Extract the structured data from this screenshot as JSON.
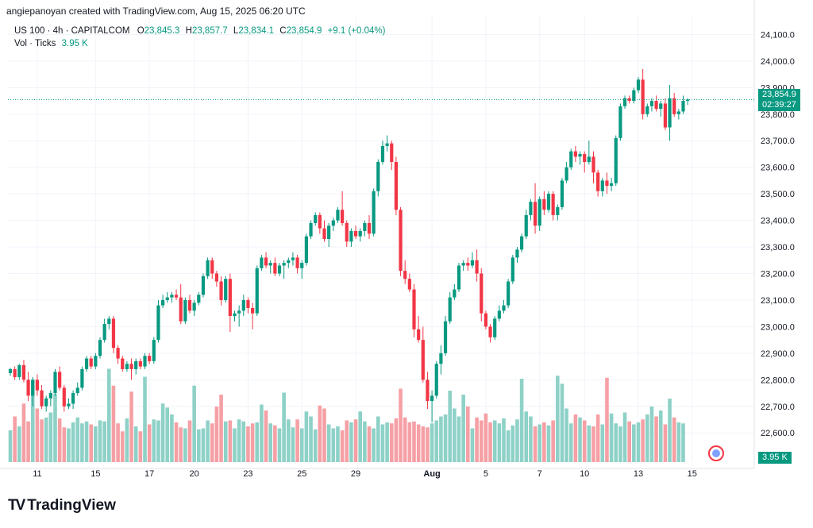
{
  "header": {
    "credit": "angiepanoyan created with TradingView.com, Aug 15, 2025 06:20 UTC",
    "symbol": "US 100 · 4h · CAPITALCOM",
    "o_label": "O",
    "o": "23,845.3",
    "h_label": "H",
    "h": "23,857.7",
    "l_label": "L",
    "l": "23,834.1",
    "c_label": "C",
    "c": "23,854.9",
    "change": "+9.1 (+0.04%)",
    "vol_label": "Vol · Ticks",
    "vol_value": "3.95 K"
  },
  "last_price": {
    "price": "23,854.9",
    "countdown": "02:39:27",
    "volume": "3.95 K"
  },
  "brand": {
    "name": "TradingView",
    "logo": "TV"
  },
  "colors": {
    "up": "#089981",
    "down": "#F23645",
    "vol_up": "#8ED1C7",
    "vol_down": "#F5A0A5",
    "grid": "#F0F3FA"
  },
  "chart_data": {
    "type": "candlestick",
    "title": "",
    "xlabel": "",
    "ylabel": "",
    "ylim": [
      22490,
      24170
    ],
    "y_ticks": [
      22600,
      22700,
      22800,
      22900,
      23000,
      23100,
      23200,
      23300,
      23400,
      23500,
      23600,
      23700,
      23800,
      23900,
      24000,
      24100
    ],
    "y_tick_labels": [
      "22,600.0",
      "22,700.0",
      "22,800.0",
      "22,900.0",
      "23,000.0",
      "23,100.0",
      "23,200.0",
      "23,300.0",
      "23,400.0",
      "23,500.0",
      "23,600.0",
      "23,700.0",
      "23,800.0",
      "23,900.0",
      "24,000.0",
      "24,100.0"
    ],
    "x_ticks": [
      {
        "label": "11",
        "index": 6
      },
      {
        "label": "15",
        "index": 19
      },
      {
        "label": "17",
        "index": 31
      },
      {
        "label": "20",
        "index": 41
      },
      {
        "label": "23",
        "index": 53
      },
      {
        "label": "25",
        "index": 65
      },
      {
        "label": "29",
        "index": 77
      },
      {
        "label": "Aug",
        "index": 94,
        "bold": true
      },
      {
        "label": "5",
        "index": 106
      },
      {
        "label": "7",
        "index": 118
      },
      {
        "label": "10",
        "index": 128
      },
      {
        "label": "13",
        "index": 140
      },
      {
        "label": "15",
        "index": 152
      }
    ],
    "grid": true,
    "candles": [
      [
        22825,
        22845,
        22815,
        22840
      ],
      [
        22840,
        22850,
        22800,
        22810
      ],
      [
        22810,
        22860,
        22800,
        22855
      ],
      [
        22855,
        22875,
        22790,
        22800
      ],
      [
        22800,
        22830,
        22720,
        22740
      ],
      [
        22740,
        22810,
        22700,
        22800
      ],
      [
        22800,
        22820,
        22740,
        22760
      ],
      [
        22760,
        22780,
        22690,
        22700
      ],
      [
        22700,
        22740,
        22680,
        22730
      ],
      [
        22730,
        22760,
        22700,
        22750
      ],
      [
        22750,
        22840,
        22740,
        22830
      ],
      [
        22830,
        22850,
        22760,
        22770
      ],
      [
        22770,
        22780,
        22680,
        22700
      ],
      [
        22700,
        22730,
        22690,
        22710
      ],
      [
        22710,
        22760,
        22690,
        22750
      ],
      [
        22750,
        22790,
        22740,
        22770
      ],
      [
        22770,
        22850,
        22760,
        22840
      ],
      [
        22840,
        22890,
        22830,
        22880
      ],
      [
        22880,
        22890,
        22840,
        22850
      ],
      [
        22850,
        22900,
        22840,
        22890
      ],
      [
        22890,
        22960,
        22880,
        22950
      ],
      [
        22950,
        23030,
        22940,
        23010
      ],
      [
        23010,
        23040,
        22990,
        23030
      ],
      [
        23030,
        23040,
        22900,
        22920
      ],
      [
        22920,
        22930,
        22860,
        22880
      ],
      [
        22880,
        22890,
        22830,
        22840
      ],
      [
        22840,
        22870,
        22830,
        22860
      ],
      [
        22860,
        22880,
        22800,
        22840
      ],
      [
        22840,
        22880,
        22820,
        22870
      ],
      [
        22870,
        22880,
        22840,
        22850
      ],
      [
        22850,
        22900,
        22840,
        22890
      ],
      [
        22890,
        22900,
        22860,
        22870
      ],
      [
        22870,
        22960,
        22860,
        22950
      ],
      [
        22950,
        23100,
        22940,
        23080
      ],
      [
        23080,
        23120,
        23070,
        23100
      ],
      [
        23100,
        23130,
        23090,
        23110
      ],
      [
        23110,
        23130,
        23090,
        23120
      ],
      [
        23120,
        23140,
        23100,
        23110
      ],
      [
        23110,
        23160,
        23010,
        23020
      ],
      [
        23020,
        23110,
        23010,
        23100
      ],
      [
        23100,
        23120,
        23050,
        23060
      ],
      [
        23060,
        23100,
        23040,
        23090
      ],
      [
        23090,
        23130,
        23080,
        23120
      ],
      [
        23120,
        23200,
        23110,
        23190
      ],
      [
        23190,
        23260,
        23180,
        23250
      ],
      [
        23250,
        23260,
        23180,
        23200
      ],
      [
        23200,
        23210,
        23150,
        23170
      ],
      [
        23170,
        23190,
        23080,
        23100
      ],
      [
        23100,
        23190,
        23090,
        23180
      ],
      [
        23180,
        23200,
        22980,
        23040
      ],
      [
        23040,
        23060,
        23020,
        23050
      ],
      [
        23050,
        23080,
        23000,
        23060
      ],
      [
        23060,
        23120,
        23040,
        23100
      ],
      [
        23100,
        23110,
        23050,
        23070
      ],
      [
        23070,
        23090,
        22990,
        23050
      ],
      [
        23050,
        23230,
        23040,
        23220
      ],
      [
        23220,
        23270,
        23210,
        23260
      ],
      [
        23260,
        23280,
        23220,
        23230
      ],
      [
        23230,
        23250,
        23200,
        23240
      ],
      [
        23240,
        23260,
        23190,
        23200
      ],
      [
        23200,
        23240,
        23190,
        23230
      ],
      [
        23230,
        23250,
        23180,
        23240
      ],
      [
        23240,
        23260,
        23220,
        23250
      ],
      [
        23250,
        23280,
        23230,
        23260
      ],
      [
        23260,
        23270,
        23200,
        23220
      ],
      [
        23220,
        23250,
        23180,
        23240
      ],
      [
        23240,
        23350,
        23230,
        23340
      ],
      [
        23340,
        23400,
        23330,
        23390
      ],
      [
        23390,
        23430,
        23380,
        23420
      ],
      [
        23420,
        23430,
        23350,
        23370
      ],
      [
        23370,
        23400,
        23320,
        23330
      ],
      [
        23330,
        23390,
        23300,
        23380
      ],
      [
        23380,
        23410,
        23360,
        23400
      ],
      [
        23400,
        23450,
        23390,
        23440
      ],
      [
        23440,
        23510,
        23380,
        23390
      ],
      [
        23390,
        23400,
        23300,
        23320
      ],
      [
        23320,
        23370,
        23300,
        23360
      ],
      [
        23360,
        23380,
        23330,
        23340
      ],
      [
        23340,
        23370,
        23320,
        23360
      ],
      [
        23360,
        23400,
        23340,
        23390
      ],
      [
        23390,
        23420,
        23330,
        23350
      ],
      [
        23350,
        23520,
        23340,
        23510
      ],
      [
        23510,
        23630,
        23490,
        23620
      ],
      [
        23620,
        23700,
        23610,
        23680
      ],
      [
        23680,
        23720,
        23660,
        23690
      ],
      [
        23690,
        23700,
        23590,
        23620
      ],
      [
        23620,
        23640,
        23420,
        23440
      ],
      [
        23440,
        23450,
        23190,
        23210
      ],
      [
        23210,
        23250,
        23160,
        23180
      ],
      [
        23180,
        23200,
        23130,
        23140
      ],
      [
        23140,
        23160,
        22960,
        22990
      ],
      [
        22990,
        23040,
        22940,
        22950
      ],
      [
        22950,
        23000,
        22790,
        22800
      ],
      [
        22800,
        22830,
        22690,
        22720
      ],
      [
        22720,
        22760,
        22640,
        22740
      ],
      [
        22740,
        22870,
        22730,
        22860
      ],
      [
        22860,
        22930,
        22820,
        22900
      ],
      [
        22900,
        23040,
        22890,
        23020
      ],
      [
        23020,
        23130,
        23010,
        23110
      ],
      [
        23110,
        23160,
        23100,
        23140
      ],
      [
        23140,
        23240,
        23130,
        23230
      ],
      [
        23230,
        23250,
        23210,
        23240
      ],
      [
        23240,
        23260,
        23210,
        23230
      ],
      [
        23230,
        23280,
        23220,
        23250
      ],
      [
        23250,
        23290,
        23170,
        23200
      ],
      [
        23200,
        23220,
        23020,
        23050
      ],
      [
        23050,
        23060,
        22990,
        23000
      ],
      [
        23000,
        23010,
        22940,
        22960
      ],
      [
        22960,
        23040,
        22950,
        23030
      ],
      [
        23030,
        23080,
        23020,
        23060
      ],
      [
        23060,
        23100,
        23050,
        23080
      ],
      [
        23080,
        23180,
        23070,
        23170
      ],
      [
        23170,
        23270,
        23160,
        23260
      ],
      [
        23260,
        23300,
        23240,
        23290
      ],
      [
        23290,
        23350,
        23280,
        23340
      ],
      [
        23340,
        23440,
        23330,
        23420
      ],
      [
        23420,
        23480,
        23400,
        23470
      ],
      [
        23470,
        23540,
        23350,
        23380
      ],
      [
        23380,
        23490,
        23360,
        23480
      ],
      [
        23480,
        23510,
        23420,
        23440
      ],
      [
        23440,
        23510,
        23430,
        23500
      ],
      [
        23500,
        23510,
        23400,
        23420
      ],
      [
        23420,
        23460,
        23400,
        23450
      ],
      [
        23450,
        23560,
        23440,
        23550
      ],
      [
        23550,
        23620,
        23540,
        23600
      ],
      [
        23600,
        23670,
        23590,
        23660
      ],
      [
        23660,
        23680,
        23620,
        23640
      ],
      [
        23640,
        23660,
        23610,
        23650
      ],
      [
        23650,
        23660,
        23580,
        23620
      ],
      [
        23620,
        23700,
        23610,
        23640
      ],
      [
        23640,
        23660,
        23540,
        23580
      ],
      [
        23580,
        23590,
        23490,
        23510
      ],
      [
        23510,
        23560,
        23490,
        23550
      ],
      [
        23550,
        23580,
        23500,
        23530
      ],
      [
        23530,
        23560,
        23510,
        23540
      ],
      [
        23540,
        23720,
        23530,
        23710
      ],
      [
        23710,
        23840,
        23700,
        23830
      ],
      [
        23830,
        23870,
        23820,
        23860
      ],
      [
        23860,
        23870,
        23840,
        23850
      ],
      [
        23850,
        23900,
        23840,
        23890
      ],
      [
        23890,
        23940,
        23880,
        23930
      ],
      [
        23930,
        23970,
        23780,
        23800
      ],
      [
        23800,
        23840,
        23790,
        23830
      ],
      [
        23830,
        23860,
        23810,
        23850
      ],
      [
        23850,
        23870,
        23810,
        23820
      ],
      [
        23820,
        23850,
        23790,
        23840
      ],
      [
        23840,
        23860,
        23740,
        23750
      ],
      [
        23750,
        23910,
        23700,
        23860
      ],
      [
        23860,
        23880,
        23790,
        23800
      ],
      [
        23800,
        23820,
        23780,
        23810
      ],
      [
        23810,
        23870,
        23800,
        23850
      ],
      [
        23850,
        23860,
        23835,
        23855
      ]
    ],
    "volume_ticks_k": [
      3.2,
      4.6,
      3.6,
      5.9,
      4.1,
      8.3,
      5.4,
      4.3,
      4.5,
      5.0,
      6.9,
      4.4,
      3.5,
      3.4,
      4.0,
      4.5,
      3.9,
      4.1,
      3.8,
      3.6,
      4.2,
      4.1,
      9.4,
      7.7,
      3.9,
      3.1,
      4.4,
      7.1,
      3.6,
      3.1,
      8.6,
      3.8,
      4.3,
      4.2,
      5.9,
      5.5,
      4.8,
      4.0,
      3.5,
      3.4,
      4.2,
      7.7,
      3.3,
      3.4,
      4.2,
      3.9,
      5.6,
      6.8,
      4.1,
      4.2,
      3.4,
      4.3,
      4.1,
      3.6,
      3.9,
      4.0,
      5.8,
      5.2,
      3.9,
      3.7,
      3.4,
      7.0,
      4.3,
      3.5,
      4.3,
      3.4,
      5.1,
      4.6,
      3.3,
      5.7,
      5.4,
      3.8,
      3.4,
      3.6,
      3.2,
      4.2,
      4.0,
      4.3,
      5.1,
      4.1,
      3.6,
      3.4,
      4.6,
      3.8,
      4.0,
      3.9,
      4.4,
      7.4,
      4.5,
      4.0,
      4.1,
      3.8,
      3.6,
      3.5,
      3.9,
      4.2,
      4.6,
      4.8,
      7.2,
      5.4,
      4.6,
      6.8,
      5.6,
      3.4,
      4.5,
      4.2,
      4.9,
      4.0,
      4.2,
      3.9,
      4.4,
      3.2,
      3.7,
      4.3,
      8.4,
      5.1,
      4.6,
      3.6,
      3.8,
      4.0,
      3.7,
      4.2,
      8.7,
      7.9,
      5.4,
      3.9,
      4.8,
      4.5,
      4.2,
      3.7,
      3.6,
      4.8,
      3.8,
      8.5,
      4.9,
      3.9,
      3.6,
      5.0,
      4.1,
      3.8,
      4.0,
      4.3,
      4.8,
      5.6,
      4.6,
      5.2,
      3.8,
      6.4,
      4.5,
      4.0,
      3.9
    ]
  }
}
